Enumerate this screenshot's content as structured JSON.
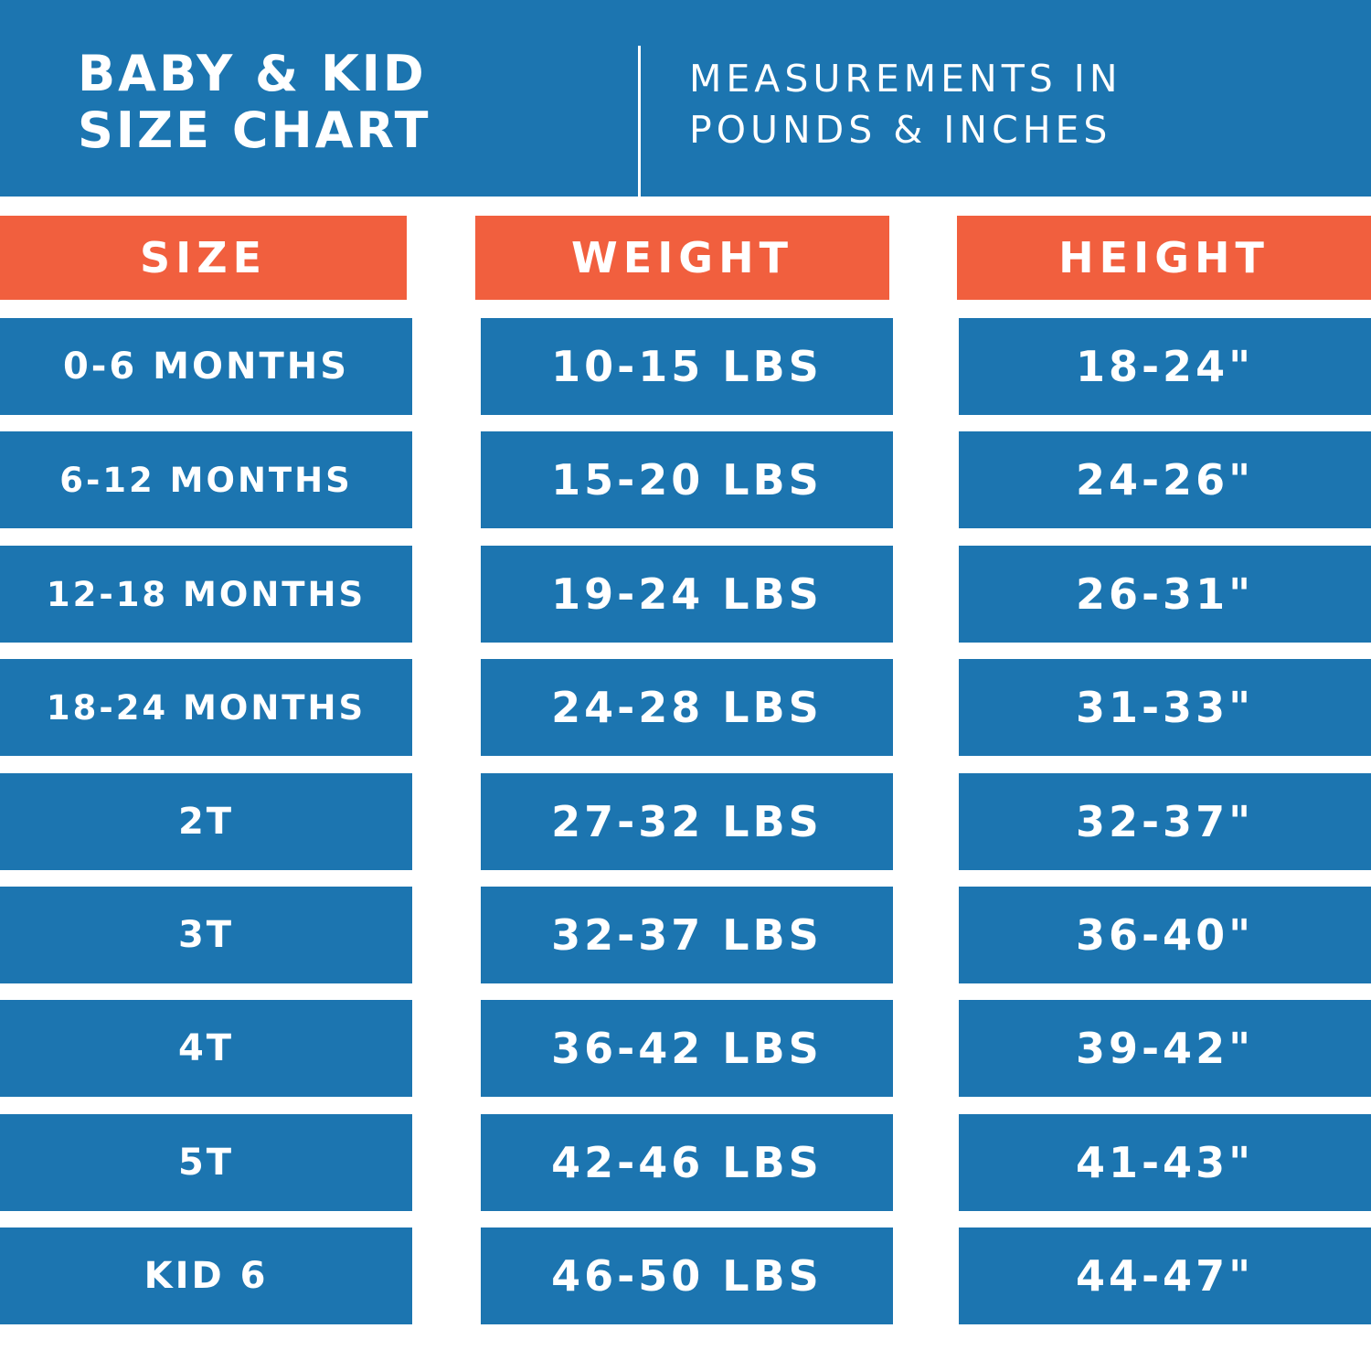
{
  "header": {
    "title_lines": [
      "BABY & KID",
      "SIZE CHART"
    ],
    "subtitle_lines": [
      "MEASUREMENTS IN",
      "POUNDS & INCHES"
    ]
  },
  "colors": {
    "header_background": "#1c75b0",
    "column_header": "#f15f3e",
    "cell_background": "#1c75b0",
    "text": "#ffffff"
  },
  "chart_data": {
    "type": "table",
    "title": "BABY & KID SIZE CHART",
    "subtitle": "MEASUREMENTS IN POUNDS & INCHES",
    "columns": [
      "SIZE",
      "WEIGHT",
      "HEIGHT"
    ],
    "rows": [
      [
        "0-6 MONTHS",
        "10-15 LBS",
        "18-24\""
      ],
      [
        "6-12 MONTHS",
        "15-20 LBS",
        "24-26\""
      ],
      [
        "12-18 MONTHS",
        "19-24 LBS",
        "26-31\""
      ],
      [
        "18-24 MONTHS",
        "24-28 LBS",
        "31-33\""
      ],
      [
        "2T",
        "27-32 LBS",
        "32-37\""
      ],
      [
        "3T",
        "32-37 LBS",
        "36-40\""
      ],
      [
        "4T",
        "36-42 LBS",
        "39-42\""
      ],
      [
        "5T",
        "42-46 LBS",
        "41-43\""
      ],
      [
        "KID 6",
        "46-50 LBS",
        "44-47\""
      ]
    ]
  }
}
